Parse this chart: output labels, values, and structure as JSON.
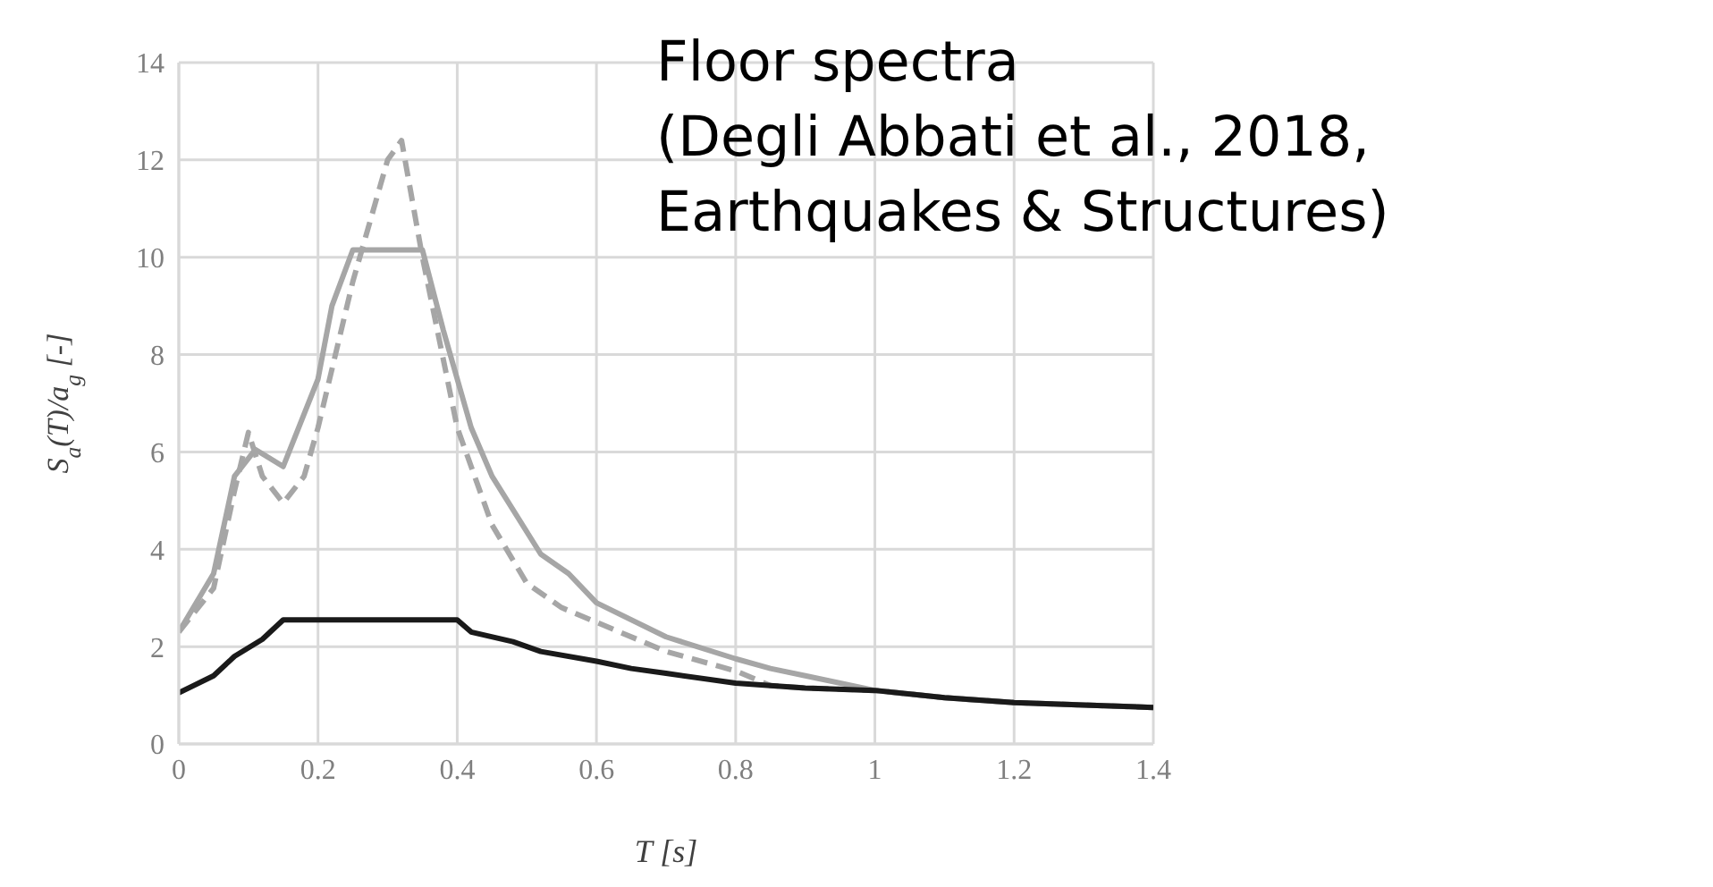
{
  "chart_data": {
    "type": "line",
    "title": "Floor spectra",
    "subtitle": "(Degli Abbati et al., 2018, Earthquakes & Structures)",
    "xlabel": "T [s]",
    "ylabel": "S$_{a}$(T)/a$_{g}$ [-]",
    "xlim": [
      0,
      1.4
    ],
    "xticks": [
      0,
      0.2,
      0.4,
      0.6,
      0.8,
      1,
      1.2,
      1.4
    ],
    "ylim": [
      0,
      14
    ],
    "yticks": [
      0,
      2,
      4,
      6,
      8,
      10,
      12,
      14
    ],
    "grid": true,
    "legend": false,
    "marker": "none",
    "series": [
      {
        "color": "#a6a6a6",
        "line_style": "solid",
        "x": [
          0,
          0.05,
          0.08,
          0.11,
          0.15,
          0.2,
          0.22,
          0.25,
          0.35,
          0.38,
          0.42,
          0.45,
          0.52,
          0.56,
          0.6,
          0.7,
          0.8,
          0.85,
          0.9,
          1.0,
          1.1,
          1.2,
          1.3,
          1.4
        ],
        "values": [
          2.3,
          3.5,
          5.5,
          6.05,
          5.7,
          7.5,
          9,
          10.15,
          10.15,
          8.5,
          6.5,
          5.5,
          3.9,
          3.5,
          2.9,
          2.2,
          1.75,
          1.55,
          1.4,
          1.1,
          0.95,
          0.85,
          0.8,
          0.75
        ]
      },
      {
        "color": "#a6a6a6",
        "line_style": "dashed",
        "x": [
          0,
          0.05,
          0.08,
          0.1,
          0.12,
          0.15,
          0.18,
          0.2,
          0.25,
          0.3,
          0.32,
          0.35,
          0.4,
          0.45,
          0.5,
          0.55,
          0.6,
          0.7,
          0.8,
          0.85,
          0.9,
          1.0,
          1.1,
          1.2,
          1.3,
          1.4
        ],
        "values": [
          2.3,
          3.2,
          5.2,
          6.4,
          5.5,
          4.95,
          5.5,
          6.5,
          9.5,
          12,
          12.4,
          10,
          6.5,
          4.5,
          3.3,
          2.8,
          2.5,
          1.9,
          1.5,
          1.2,
          1.15,
          1.1,
          0.95,
          0.85,
          0.8,
          0.75
        ]
      },
      {
        "color": "#1a1a1a",
        "line_style": "solid",
        "x": [
          0,
          0.05,
          0.08,
          0.12,
          0.15,
          0.4,
          0.42,
          0.48,
          0.52,
          0.6,
          0.65,
          0.7,
          0.8,
          0.85,
          0.9,
          1.0,
          1.1,
          1.2,
          1.3,
          1.4
        ],
        "values": [
          1.05,
          1.4,
          1.8,
          2.15,
          2.55,
          2.55,
          2.3,
          2.1,
          1.9,
          1.7,
          1.55,
          1.45,
          1.25,
          1.2,
          1.15,
          1.1,
          0.95,
          0.85,
          0.8,
          0.75
        ]
      }
    ]
  }
}
